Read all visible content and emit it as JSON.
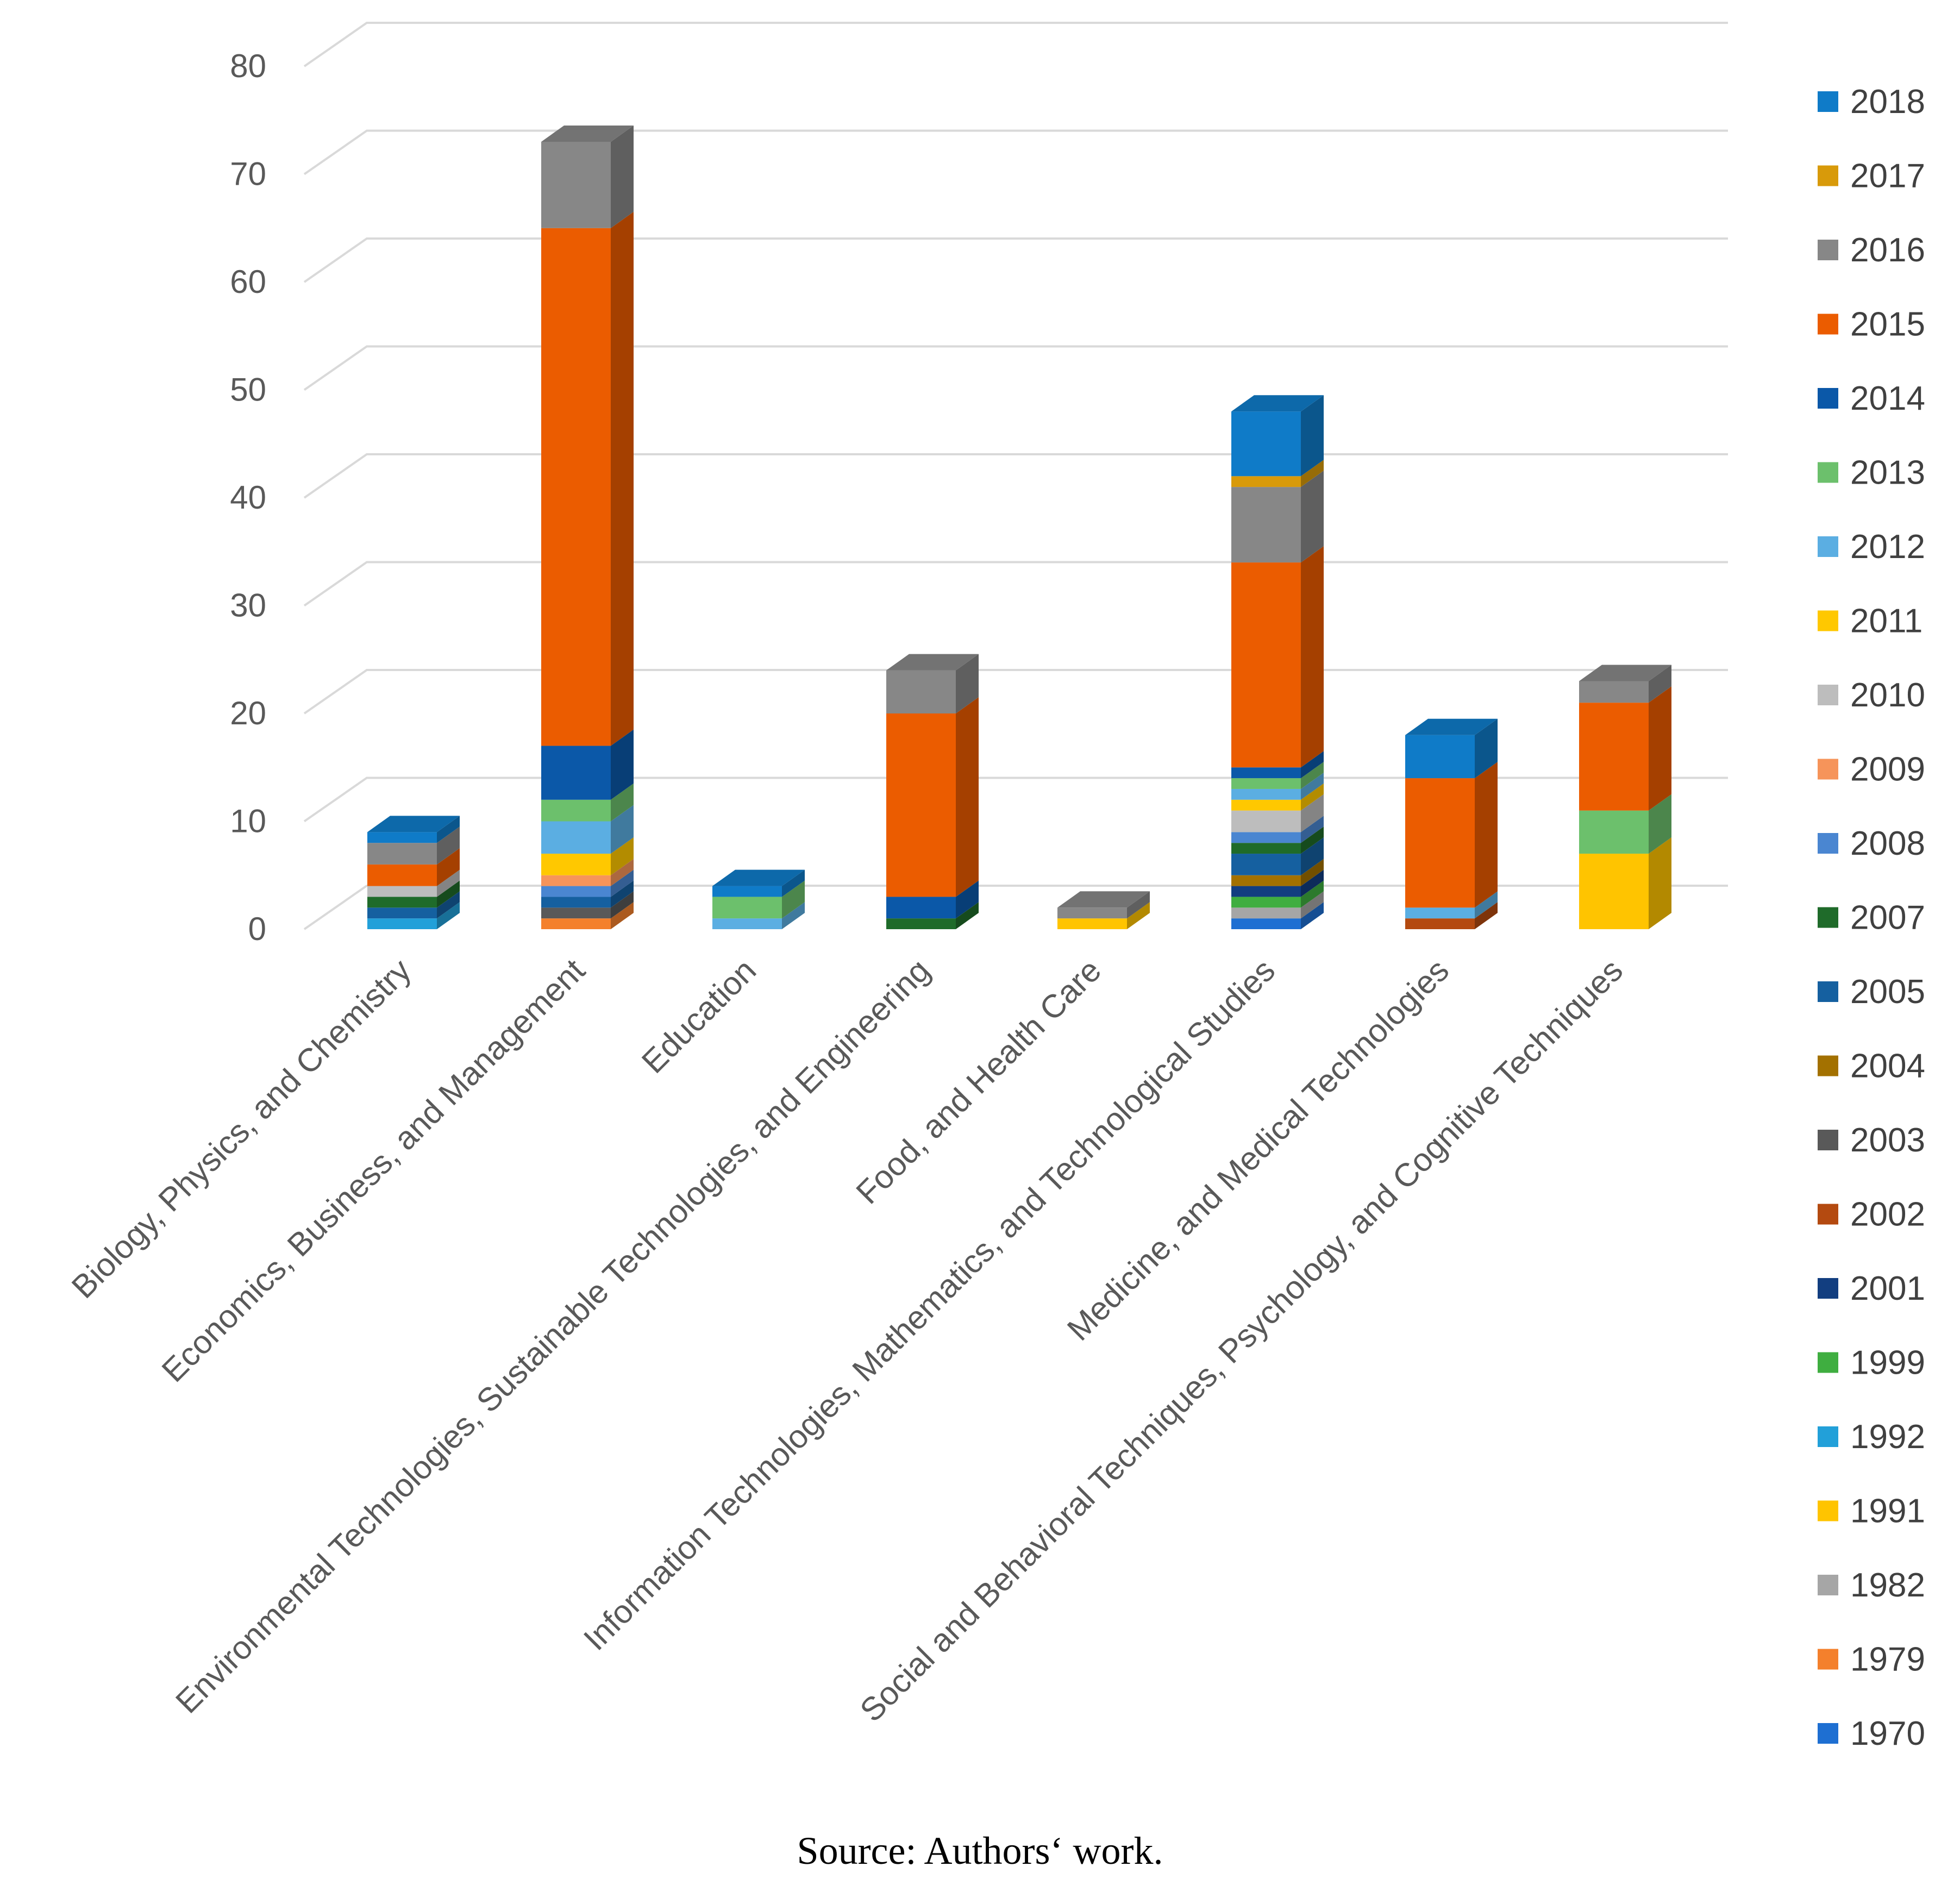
{
  "caption": "Source: Authors‘ work.",
  "colors": {
    "2018": "#0F7BC8",
    "2017": "#D89A0A",
    "2016": "#878787",
    "2015": "#EB5C00",
    "2014": "#0B58A8",
    "2013": "#6CC06C",
    "2012": "#5BAEE2",
    "2011": "#FFC800",
    "2010": "#BDBDBD",
    "2009": "#F6945A",
    "2008": "#4A86D1",
    "2007": "#1F6B2A",
    "2005": "#1560A0",
    "2004": "#A37100",
    "2003": "#595959",
    "2002": "#B44A10",
    "2001": "#123E80",
    "1999": "#3FAE40",
    "1992": "#22A0D9",
    "1991": "#FFC400",
    "1982": "#A6A6A6",
    "1979": "#F4802C",
    "1970": "#1E6FD2"
  },
  "chart_data": {
    "type": "bar",
    "stacked": true,
    "three_d": true,
    "title": "",
    "xlabel": "",
    "ylabel": "",
    "ylim": [
      0,
      80
    ],
    "yticks": [
      0,
      10,
      20,
      30,
      40,
      50,
      60,
      70,
      80
    ],
    "grid": true,
    "legend_position": "right",
    "categories": [
      "Biology, Physics, and Chemistry",
      "Economics, Business, and Management",
      "Education",
      "Environmental Technologies, Sustainable Technologies, and Engineering",
      "Food, and Health Care",
      "Information Technologies, Mathematics, and Technological Studies",
      "Medicine, and Medical Technologies",
      "Social and Behavioral Techniques, Psychology, and Cognitive Techniques"
    ],
    "series": [
      {
        "name": "1970",
        "values": [
          0,
          0,
          0,
          0,
          0,
          1,
          0,
          0
        ]
      },
      {
        "name": "1979",
        "values": [
          0,
          1,
          0,
          0,
          0,
          0,
          0,
          0
        ]
      },
      {
        "name": "1982",
        "values": [
          0,
          0,
          0,
          0,
          0,
          1,
          0,
          0
        ]
      },
      {
        "name": "1991",
        "values": [
          0,
          0,
          0,
          0,
          1,
          0,
          0,
          7
        ]
      },
      {
        "name": "1992",
        "values": [
          1,
          0,
          0,
          0,
          0,
          0,
          0,
          0
        ]
      },
      {
        "name": "1999",
        "values": [
          0,
          0,
          0,
          0,
          0,
          1,
          0,
          0
        ]
      },
      {
        "name": "2001",
        "values": [
          0,
          0,
          0,
          0,
          0,
          1,
          0,
          0
        ]
      },
      {
        "name": "2002",
        "values": [
          0,
          0,
          0,
          0,
          0,
          0,
          1,
          0
        ]
      },
      {
        "name": "2003",
        "values": [
          0,
          1,
          0,
          0,
          0,
          0,
          0,
          0
        ]
      },
      {
        "name": "2004",
        "values": [
          0,
          0,
          0,
          0,
          0,
          1,
          0,
          0
        ]
      },
      {
        "name": "2005",
        "values": [
          1,
          1,
          0,
          0,
          0,
          2,
          0,
          0
        ]
      },
      {
        "name": "2007",
        "values": [
          1,
          0,
          0,
          1,
          0,
          1,
          0,
          0
        ]
      },
      {
        "name": "2008",
        "values": [
          0,
          1,
          0,
          0,
          0,
          1,
          0,
          0
        ]
      },
      {
        "name": "2009",
        "values": [
          0,
          1,
          0,
          0,
          0,
          0,
          0,
          0
        ]
      },
      {
        "name": "2010",
        "values": [
          1,
          0,
          0,
          0,
          0,
          2,
          0,
          0
        ]
      },
      {
        "name": "2011",
        "values": [
          0,
          2,
          0,
          0,
          0,
          1,
          0,
          0
        ]
      },
      {
        "name": "2012",
        "values": [
          0,
          3,
          1,
          0,
          0,
          1,
          1,
          0
        ]
      },
      {
        "name": "2013",
        "values": [
          0,
          2,
          2,
          0,
          0,
          1,
          0,
          4
        ]
      },
      {
        "name": "2014",
        "values": [
          0,
          5,
          0,
          2,
          0,
          1,
          0,
          0
        ]
      },
      {
        "name": "2015",
        "values": [
          2,
          48,
          0,
          17,
          0,
          19,
          12,
          10
        ]
      },
      {
        "name": "2016",
        "values": [
          2,
          8,
          0,
          4,
          1,
          7,
          0,
          2
        ]
      },
      {
        "name": "2017",
        "values": [
          0,
          0,
          0,
          0,
          0,
          1,
          0,
          0
        ]
      },
      {
        "name": "2018",
        "values": [
          1,
          0,
          1,
          0,
          0,
          6,
          4,
          0
        ]
      }
    ]
  }
}
